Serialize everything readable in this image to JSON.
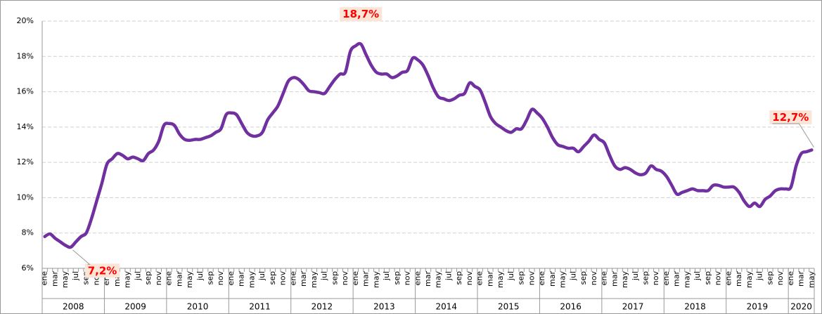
{
  "chart_data": {
    "type": "line",
    "categories": [
      "ene",
      null,
      "mar",
      null,
      "may",
      null,
      "jul",
      null,
      "sep",
      null,
      "nov",
      null,
      "ene",
      null,
      "mar",
      null,
      "may",
      null,
      "jul",
      null,
      "sep",
      null,
      "nov",
      null,
      "ene",
      null,
      "mar",
      null,
      "may",
      null,
      "jul",
      null,
      "sep",
      null,
      "nov",
      null,
      "ene",
      null,
      "mar",
      null,
      "may",
      null,
      "jul",
      null,
      "sep",
      null,
      "nov",
      null,
      "ene",
      null,
      "mar",
      null,
      "may",
      null,
      "jul",
      null,
      "sep",
      null,
      "nov",
      null,
      "ene",
      null,
      "mar",
      null,
      "may",
      null,
      "jul",
      null,
      "sep",
      null,
      "nov",
      null,
      "ene",
      null,
      "mar",
      null,
      "may",
      null,
      "jul",
      null,
      "sep",
      null,
      "nov",
      null,
      "ene",
      null,
      "mar",
      null,
      "may",
      null,
      "jul",
      null,
      "sep",
      null,
      "nov",
      null,
      "ene",
      null,
      "mar",
      null,
      "may",
      null,
      "jul",
      null,
      "sep",
      null,
      "nov",
      null,
      "ene",
      null,
      "mar",
      null,
      "may",
      null,
      "jul",
      null,
      "sep",
      null,
      "nov",
      null,
      "ene",
      null,
      "mar",
      null,
      "may",
      null,
      "jul",
      null,
      "sep",
      null,
      "nov",
      null,
      "ene",
      null,
      "mar",
      null,
      "may",
      null,
      "jul",
      null,
      "sep",
      null,
      "nov",
      null,
      "ene",
      null,
      "mar",
      null,
      "may"
    ],
    "years": [
      "2008",
      "2009",
      "2010",
      "2011",
      "2012",
      "2013",
      "2014",
      "2015",
      "2016",
      "2017",
      "2018",
      "2019",
      "2020"
    ],
    "series": [
      {
        "color": "#7030a0",
        "values": [
          7.8,
          7.95,
          7.7,
          7.5,
          7.3,
          7.2,
          7.5,
          7.8,
          8.0,
          8.8,
          9.8,
          10.8,
          11.9,
          12.2,
          12.5,
          12.4,
          12.2,
          12.3,
          12.2,
          12.1,
          12.5,
          12.7,
          13.2,
          14.1,
          14.2,
          14.1,
          13.6,
          13.3,
          13.25,
          13.3,
          13.3,
          13.4,
          13.5,
          13.7,
          13.9,
          14.7,
          14.8,
          14.7,
          14.2,
          13.7,
          13.5,
          13.5,
          13.7,
          14.4,
          14.8,
          15.2,
          15.9,
          16.6,
          16.8,
          16.7,
          16.4,
          16.05,
          16.0,
          15.95,
          15.9,
          16.3,
          16.7,
          17.0,
          17.1,
          18.3,
          18.6,
          18.7,
          18.1,
          17.5,
          17.1,
          17.0,
          17.0,
          16.8,
          16.9,
          17.1,
          17.2,
          17.9,
          17.8,
          17.5,
          16.9,
          16.2,
          15.7,
          15.6,
          15.5,
          15.6,
          15.8,
          15.9,
          16.5,
          16.3,
          16.1,
          15.4,
          14.6,
          14.2,
          14.0,
          13.8,
          13.7,
          13.9,
          13.9,
          14.4,
          15.0,
          14.8,
          14.5,
          14.0,
          13.4,
          13.0,
          12.9,
          12.8,
          12.8,
          12.6,
          12.9,
          13.2,
          13.55,
          13.3,
          13.1,
          12.4,
          11.8,
          11.6,
          11.7,
          11.6,
          11.4,
          11.3,
          11.4,
          11.8,
          11.6,
          11.5,
          11.2,
          10.7,
          10.2,
          10.3,
          10.4,
          10.5,
          10.4,
          10.4,
          10.4,
          10.7,
          10.7,
          10.6,
          10.6,
          10.6,
          10.3,
          9.8,
          9.5,
          9.7,
          9.5,
          9.9,
          10.1,
          10.4,
          10.5,
          10.5,
          10.6,
          11.8,
          12.5,
          12.6,
          12.7
        ],
        "value_labels": [
          null,
          null,
          null,
          null,
          null,
          "7,2%",
          null,
          null,
          null,
          null,
          null,
          null,
          null,
          null,
          null,
          null,
          null,
          null,
          null,
          null,
          null,
          null,
          null,
          null,
          null,
          null,
          null,
          null,
          null,
          null,
          null,
          null,
          null,
          null,
          null,
          null,
          null,
          null,
          null,
          null,
          null,
          null,
          null,
          null,
          null,
          null,
          null,
          null,
          null,
          null,
          null,
          null,
          null,
          null,
          null,
          null,
          null,
          null,
          null,
          null,
          null,
          "18,7%",
          null,
          null,
          null,
          null,
          null,
          null,
          null,
          null,
          null,
          null,
          null,
          null,
          null,
          null,
          null,
          null,
          null,
          null,
          null,
          null,
          null,
          null,
          null,
          null,
          null,
          null,
          null,
          null,
          null,
          null,
          null,
          null,
          null,
          null,
          null,
          null,
          null,
          null,
          null,
          null,
          null,
          null,
          null,
          null,
          null,
          null,
          null,
          null,
          null,
          null,
          null,
          null,
          null,
          null,
          null,
          null,
          null,
          null,
          null,
          null,
          null,
          null,
          null,
          null,
          null,
          null,
          null,
          null,
          null,
          null,
          null,
          null,
          null,
          null,
          null,
          null,
          null,
          null,
          null,
          null,
          null,
          null,
          null,
          null,
          null,
          null,
          "12,7%"
        ]
      }
    ],
    "ylim": [
      6,
      20
    ],
    "yticks": [
      {
        "value": 6,
        "label": "6%"
      },
      {
        "value": 8,
        "label": "8%"
      },
      {
        "value": 10,
        "label": "10%"
      },
      {
        "value": 12,
        "label": "12%"
      },
      {
        "value": 14,
        "label": "14%"
      },
      {
        "value": 16,
        "label": "16%"
      },
      {
        "value": 18,
        "label": "18%"
      },
      {
        "value": 20,
        "label": "20%"
      }
    ],
    "grid": true
  }
}
